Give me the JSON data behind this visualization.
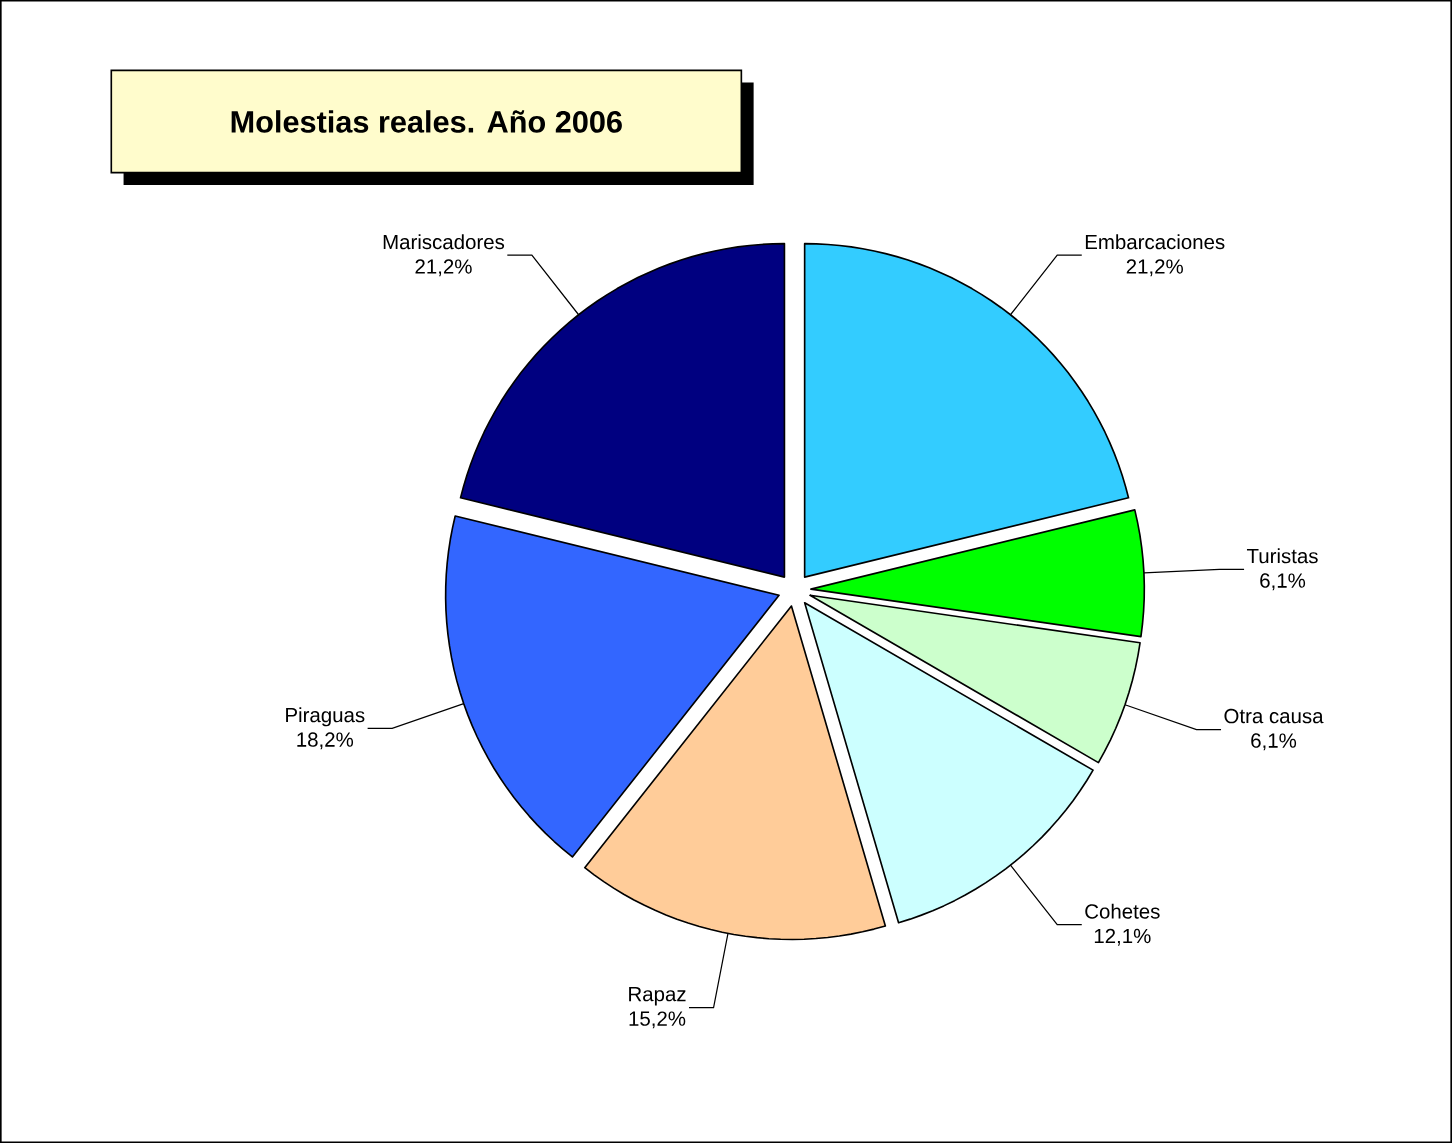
{
  "chart_data": {
    "type": "pie",
    "title": "Molestias reales. Año 2006",
    "categories": [
      "Embarcaciones",
      "Turistas",
      "Otra causa",
      "Cohetes",
      "Rapaz",
      "Piraguas",
      "Mariscadores"
    ],
    "values": [
      21.2,
      6.1,
      6.1,
      12.1,
      15.2,
      18.2,
      21.2
    ],
    "value_labels": [
      "21,2%",
      "6,1%",
      "6,1%",
      "12,1%",
      "15,2%",
      "18,2%",
      "21,2%"
    ],
    "colors": [
      "#33ccff",
      "#00ff00",
      "#ccffcc",
      "#ccffff",
      "#ffcc99",
      "#3366ff",
      "#000080"
    ]
  }
}
